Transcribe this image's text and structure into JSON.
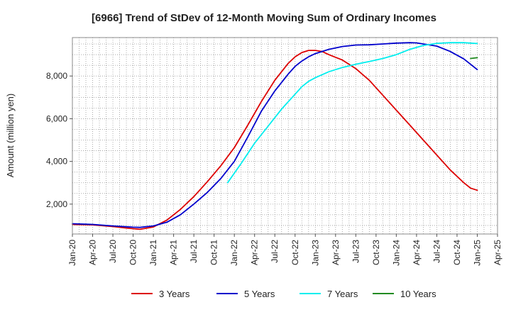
{
  "chart_data": {
    "type": "line",
    "title": "[6966]  Trend of StDev of 12-Month Moving Sum of Ordinary Incomes",
    "xlabel": "",
    "ylabel": "Amount (million yen)",
    "ylim": [
      600,
      9800
    ],
    "yticks": [
      2000,
      4000,
      6000,
      8000
    ],
    "ytick_labels": [
      "2,000",
      "4,000",
      "6,000",
      "8,000"
    ],
    "x_start": "Jan-20",
    "x_end": "Apr-25",
    "xticks": [
      0,
      3,
      6,
      9,
      12,
      15,
      18,
      21,
      24,
      27,
      30,
      33,
      36,
      39,
      42,
      45,
      48,
      51,
      54,
      57,
      60,
      63
    ],
    "xtick_labels": [
      "Jan-20",
      "Apr-20",
      "Jul-20",
      "Oct-20",
      "Jan-21",
      "Apr-21",
      "Jul-21",
      "Oct-21",
      "Jan-22",
      "Apr-22",
      "Jul-22",
      "Oct-22",
      "Jan-23",
      "Apr-23",
      "Jul-23",
      "Oct-23",
      "Jan-24",
      "Apr-24",
      "Jul-24",
      "Oct-24",
      "Jan-25",
      "Apr-25"
    ],
    "grid": true,
    "legend_position": "bottom",
    "series": [
      {
        "name": "3 Years",
        "color": "#dd0000",
        "x": [
          0,
          3,
          6,
          8,
          9,
          10,
          12,
          14,
          16,
          18,
          20,
          22,
          24,
          26,
          28,
          30,
          32,
          33,
          34,
          35,
          36,
          37,
          38,
          40,
          42,
          44,
          46,
          48,
          50,
          52,
          54,
          56,
          58,
          59,
          60
        ],
        "y": [
          1050,
          1030,
          950,
          880,
          850,
          820,
          930,
          1250,
          1750,
          2350,
          3050,
          3800,
          4650,
          5700,
          6800,
          7800,
          8600,
          8900,
          9100,
          9200,
          9200,
          9150,
          9000,
          8750,
          8350,
          7800,
          7100,
          6400,
          5700,
          5000,
          4300,
          3600,
          3000,
          2750,
          2650
        ]
      },
      {
        "name": "5 Years",
        "color": "#0000cc",
        "x": [
          0,
          3,
          6,
          8,
          9,
          10,
          12,
          14,
          16,
          18,
          20,
          22,
          24,
          26,
          28,
          30,
          32,
          33,
          34,
          35,
          36,
          38,
          40,
          42,
          44,
          46,
          48,
          50,
          51,
          52,
          54,
          56,
          58,
          60
        ],
        "y": [
          1080,
          1050,
          980,
          940,
          920,
          910,
          980,
          1150,
          1500,
          2000,
          2550,
          3200,
          4000,
          5150,
          6350,
          7300,
          8100,
          8450,
          8700,
          8900,
          9050,
          9250,
          9380,
          9450,
          9460,
          9500,
          9540,
          9560,
          9550,
          9500,
          9400,
          9150,
          8800,
          8300
        ]
      },
      {
        "name": "7 Years",
        "color": "#00eeee",
        "x": [
          23,
          25,
          27,
          29,
          31,
          33,
          34,
          35,
          36,
          38,
          40,
          42,
          44,
          46,
          48,
          50,
          52,
          54,
          56,
          58,
          60
        ],
        "y": [
          3000,
          3900,
          4850,
          5650,
          6450,
          7150,
          7500,
          7750,
          7920,
          8200,
          8400,
          8550,
          8680,
          8820,
          9000,
          9250,
          9430,
          9530,
          9560,
          9560,
          9520
        ]
      },
      {
        "name": "10 Years",
        "color": "#228b22",
        "x": [
          59,
          60
        ],
        "y": [
          8820,
          8860
        ]
      }
    ]
  }
}
